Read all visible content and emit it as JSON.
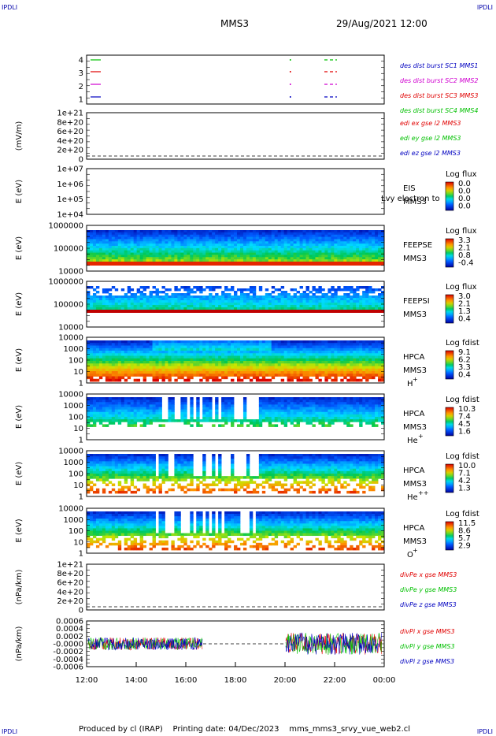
{
  "corners": {
    "tl": "IPDLI",
    "tr": "IPDLI",
    "bl": "IPDLI",
    "br": "IPDLI"
  },
  "header": {
    "spacecraft": "MMS3",
    "datetime": "29/Aug/2021 12:00"
  },
  "footer": {
    "text": "Produced by cl (IRAP)    Printing date: 04/Dec/2023    mms_mms3_srvy_vue_web2.cl"
  },
  "time_axis": [
    "12:00",
    "14:00",
    "16:00",
    "18:00",
    "20:00",
    "22:00",
    "00:00"
  ],
  "colors": {
    "red": "#e00000",
    "green": "#00c000",
    "magenta": "#d000d0",
    "blue": "#0000c0"
  },
  "chart_data": [
    {
      "type": "line",
      "panel": "burst",
      "ylabel": "",
      "yticks": [
        "4",
        "3",
        "2",
        "1"
      ],
      "x": [
        "12:00",
        "00:00"
      ],
      "legend": [
        {
          "text": "des dist burst SC1 MMS1",
          "color": "#0000c0"
        },
        {
          "text": "des dist burst SC2 MMS2",
          "color": "#d000d0"
        },
        {
          "text": "des dist burst SC3 MMS3",
          "color": "#e00000"
        },
        {
          "text": "des dist burst SC4 MMS4",
          "color": "#00c000"
        }
      ]
    },
    {
      "type": "line",
      "panel": "edi",
      "ylabel": "(mV/m)",
      "yticks": [
        "1e+21",
        "8e+20",
        "6e+20",
        "4e+20",
        "2e+20",
        "0"
      ],
      "legend": [
        {
          "text": "edi ex gse l2 MMS3",
          "color": "#e00000"
        },
        {
          "text": "edi ey gse l2 MMS3",
          "color": "#00c000"
        },
        {
          "text": "edi ez gse l2 MMS3",
          "color": "#0000c0"
        }
      ]
    },
    {
      "type": "heatmap",
      "panel": "eis",
      "ylabel": "E (eV)",
      "yticks": [
        "1e+07",
        "1e+06",
        "1e+05",
        "1e+04"
      ],
      "instrument": "EIS",
      "sc": "MMS3",
      "overlay_text": "Lvy electron to",
      "colorbar": {
        "title": "Log flux",
        "ticks": [
          "0.0",
          "0.0",
          "0.0",
          "0.0"
        ]
      }
    },
    {
      "type": "heatmap",
      "panel": "feepse",
      "ylabel": "E (eV)",
      "yticks": [
        "1000000",
        "100000",
        "10000"
      ],
      "instrument": "FEEPSE",
      "sc": "MMS3",
      "colorbar": {
        "title": "Log flux",
        "ticks": [
          "3.3",
          "2.1",
          "0.8",
          "-0.4"
        ]
      }
    },
    {
      "type": "heatmap",
      "panel": "feepsi",
      "ylabel": "E (eV)",
      "yticks": [
        "1000000",
        "100000",
        "10000"
      ],
      "instrument": "FEEPSI",
      "sc": "MMS3",
      "colorbar": {
        "title": "Log flux",
        "ticks": [
          "3.0",
          "2.1",
          "1.3",
          "0.4"
        ]
      }
    },
    {
      "type": "heatmap",
      "panel": "hpca_h",
      "ylabel": "E (eV)",
      "yticks": [
        "10000",
        "1000",
        "100",
        "10",
        "1"
      ],
      "instrument": "HPCA",
      "sc": "MMS3",
      "species": "H",
      "charge": "+",
      "colorbar": {
        "title": "Log fdist",
        "ticks": [
          "9.1",
          "6.2",
          "3.3",
          "0.4"
        ]
      }
    },
    {
      "type": "heatmap",
      "panel": "hpca_he",
      "ylabel": "E (eV)",
      "yticks": [
        "10000",
        "1000",
        "100",
        "10",
        "1"
      ],
      "instrument": "HPCA",
      "sc": "MMS3",
      "species": "He",
      "charge": "+",
      "colorbar": {
        "title": "Log fdist",
        "ticks": [
          "10.3",
          "7.4",
          "4.5",
          "1.6"
        ]
      }
    },
    {
      "type": "heatmap",
      "panel": "hpca_he2",
      "ylabel": "E (eV)",
      "yticks": [
        "10000",
        "1000",
        "100",
        "10",
        "1"
      ],
      "instrument": "HPCA",
      "sc": "MMS3",
      "species": "He",
      "charge": "++",
      "colorbar": {
        "title": "Log fdist",
        "ticks": [
          "10.0",
          "7.1",
          "4.2",
          "1.3"
        ]
      }
    },
    {
      "type": "heatmap",
      "panel": "hpca_o",
      "ylabel": "E (eV)",
      "yticks": [
        "10000",
        "1000",
        "100",
        "10",
        "1"
      ],
      "instrument": "HPCA",
      "sc": "MMS3",
      "species": "O",
      "charge": "+",
      "colorbar": {
        "title": "Log fdist",
        "ticks": [
          "11.5",
          "8.6",
          "5.7",
          "2.9"
        ]
      }
    },
    {
      "type": "line",
      "panel": "divpe",
      "ylabel": "(nPa/km)",
      "yticks": [
        "1e+21",
        "8e+20",
        "6e+20",
        "4e+20",
        "2e+20",
        "0"
      ],
      "legend": [
        {
          "text": "divPe x gse MMS3",
          "color": "#e00000"
        },
        {
          "text": "divPe y gse MMS3",
          "color": "#00c000"
        },
        {
          "text": "divPe z gse MMS3",
          "color": "#0000c0"
        }
      ]
    },
    {
      "type": "line",
      "panel": "divpi",
      "ylabel": "(nPa/km)",
      "yticks": [
        "0.0006",
        "0.0004",
        "0.0002",
        "-0.0000",
        "-0.0002",
        "-0.0004",
        "-0.0006"
      ],
      "legend": [
        {
          "text": "divPi x gse MMS3",
          "color": "#e00000"
        },
        {
          "text": "divPi y gse MMS3",
          "color": "#00c000"
        },
        {
          "text": "divPi z gse MMS3",
          "color": "#0000c0"
        }
      ]
    }
  ]
}
